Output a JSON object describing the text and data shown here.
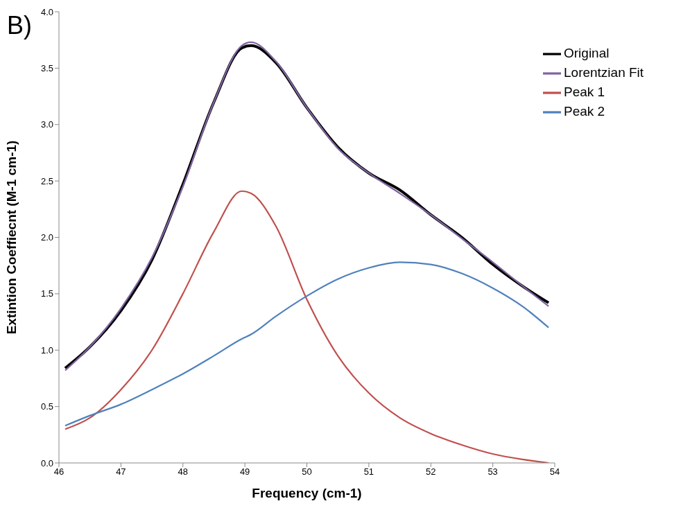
{
  "chart_data": {
    "type": "line",
    "xlabel": "Frequency (cm-1)",
    "ylabel": "Extintion Coeffiecnt (M-1 cm-1)",
    "annotations": [
      "B)"
    ],
    "x": [
      46.1,
      46.5,
      47,
      47.5,
      48,
      48.5,
      48.95,
      49.1,
      49.5,
      50,
      50.5,
      51,
      51.5,
      52,
      52.5,
      53,
      53.5,
      53.9
    ],
    "series": [
      {
        "name": "Original",
        "color": "#000000",
        "values": [
          0.84,
          1.03,
          1.35,
          1.8,
          2.47,
          3.2,
          3.68,
          3.7,
          3.55,
          3.15,
          2.8,
          2.57,
          2.42,
          2.2,
          2.0,
          1.76,
          1.56,
          1.42
        ]
      },
      {
        "name": "Lorentzian Fit",
        "color": "#8064a2",
        "values": [
          0.82,
          1.03,
          1.37,
          1.82,
          2.45,
          3.2,
          3.7,
          3.73,
          3.56,
          3.15,
          2.79,
          2.57,
          2.39,
          2.2,
          1.99,
          1.78,
          1.56,
          1.39
        ]
      },
      {
        "name": "Peak 1",
        "color": "#c0504d",
        "values": [
          0.3,
          0.4,
          0.65,
          1.0,
          1.5,
          2.05,
          2.41,
          2.39,
          2.1,
          1.45,
          0.95,
          0.62,
          0.4,
          0.26,
          0.16,
          0.08,
          0.03,
          0.0
        ]
      },
      {
        "name": "Peak 2",
        "color": "#4f81bd",
        "values": [
          0.33,
          0.42,
          0.52,
          0.65,
          0.79,
          0.95,
          1.1,
          1.14,
          1.3,
          1.48,
          1.63,
          1.73,
          1.78,
          1.76,
          1.68,
          1.55,
          1.38,
          1.2
        ]
      }
    ],
    "xlim": [
      46,
      54
    ],
    "xticks": [
      46,
      47,
      48,
      49,
      50,
      51,
      52,
      53,
      54
    ],
    "ylim": [
      0,
      4
    ],
    "yticks": [
      {
        "value": 0,
        "label": "0.0"
      },
      {
        "value": 0.5,
        "label": "0.5"
      },
      {
        "value": 1,
        "label": "1.0"
      },
      {
        "value": 1.5,
        "label": "1.5"
      },
      {
        "value": 2,
        "label": "2.0"
      },
      {
        "value": 2.5,
        "label": "2.5"
      },
      {
        "value": 3,
        "label": "3.0"
      },
      {
        "value": 3.5,
        "label": "3.5"
      },
      {
        "value": 4,
        "label": "4.0"
      }
    ],
    "grid": false,
    "legend": "top right",
    "marker": "none",
    "line_style": "solid"
  }
}
